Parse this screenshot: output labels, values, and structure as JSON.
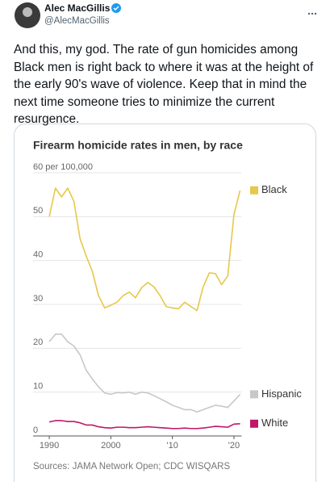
{
  "tweet": {
    "name": "Alec MacGillis",
    "handle": "@AlecMacGillis",
    "text": "And this, my god. The rate of gun homicides among Black men is right back to where it was at the height of the early 90's wave of violence. Keep that in mind the next time someone tries to minimize the current resurgence."
  },
  "chart_data": {
    "type": "line",
    "title": "Firearm homicide rates in men, by race",
    "source": "Sources: JAMA Network Open; CDC WISQARS",
    "x": [
      1990,
      1991,
      1992,
      1993,
      1994,
      1995,
      1996,
      1997,
      1998,
      1999,
      2000,
      2001,
      2002,
      2003,
      2004,
      2005,
      2006,
      2007,
      2008,
      2009,
      2010,
      2011,
      2012,
      2013,
      2014,
      2015,
      2016,
      2017,
      2018,
      2019,
      2020,
      2021
    ],
    "series": [
      {
        "name": "Black",
        "color": "#e6c84a",
        "values": [
          50,
          56.5,
          54.5,
          56.5,
          53.5,
          45,
          41,
          37.5,
          32,
          29.2,
          29.8,
          30.5,
          32,
          32.8,
          31.5,
          33.8,
          35,
          34,
          32,
          29.5,
          29.2,
          29,
          30.5,
          29.5,
          28.6,
          34,
          37.2,
          37,
          34.5,
          36.5,
          50.5,
          56
        ]
      },
      {
        "name": "Hispanic",
        "color": "#c8c8c8",
        "values": [
          21.5,
          23.2,
          23.2,
          21.5,
          20.5,
          18.5,
          15,
          13,
          11.2,
          9.8,
          9.5,
          9.9,
          9.8,
          10,
          9.5,
          10,
          9.8,
          9.2,
          8.5,
          7.8,
          7,
          6.5,
          6,
          6,
          5.5,
          6,
          6.5,
          7,
          6.8,
          6.5,
          8,
          9.5
        ]
      },
      {
        "name": "White",
        "color": "#c0166b",
        "values": [
          3.2,
          3.5,
          3.5,
          3.3,
          3.3,
          3,
          2.5,
          2.5,
          2.1,
          1.9,
          1.8,
          2,
          2,
          1.9,
          1.9,
          2,
          2.1,
          2,
          1.9,
          1.8,
          1.7,
          1.7,
          1.8,
          1.7,
          1.7,
          1.8,
          2,
          2.2,
          2.1,
          2,
          2.7,
          2.8
        ]
      }
    ],
    "xlim": [
      1988,
      2021.5
    ],
    "ylim": [
      0,
      60
    ],
    "xticks": [
      1990,
      2000,
      {
        "value": 2010,
        "label": "'10"
      },
      {
        "value": 2020,
        "label": "'20"
      }
    ],
    "yticks": [
      0,
      10,
      20,
      30,
      40,
      50,
      {
        "value": 60,
        "label": "60 per 100,000"
      }
    ],
    "grid": true,
    "legend": "right"
  }
}
